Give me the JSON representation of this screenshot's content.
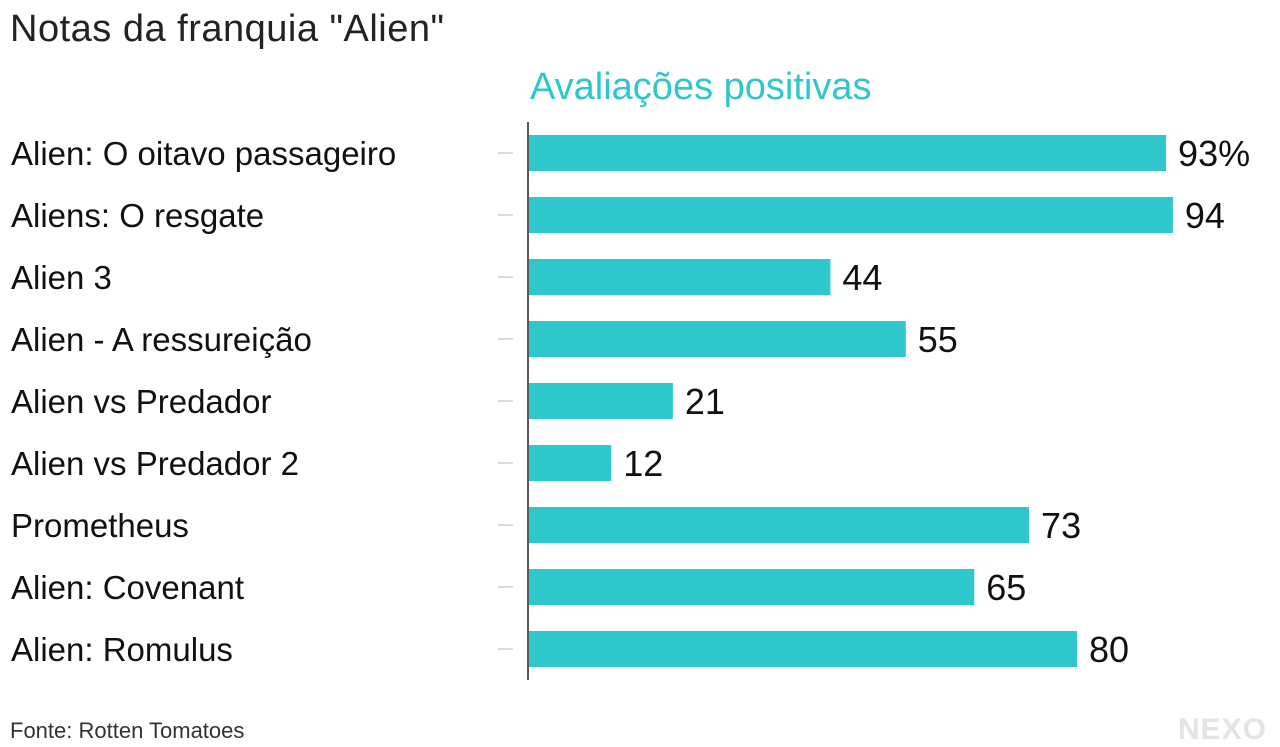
{
  "title": "Notas da franquia \"Alien\"",
  "source": "Fonte: Rotten Tomatoes",
  "logo": "NEXO",
  "colors": {
    "bar": "#2ec7cc",
    "heading": "#2ec7cc",
    "axis": "#222222",
    "tick": "#cccccc"
  },
  "chart_data": {
    "type": "bar",
    "orientation": "horizontal",
    "categories": [
      "Alien: O oitavo passageiro",
      "Aliens: O resgate",
      "Alien 3",
      "Alien - A ressureição",
      "Alien vs Predador",
      "Alien vs Predador 2",
      "Prometheus",
      "Alien: Covenant",
      "Alien: Romulus"
    ],
    "series": [
      {
        "name": "Avaliações positivas",
        "values": [
          93,
          94,
          44,
          55,
          21,
          12,
          73,
          65,
          80
        ]
      }
    ],
    "value_labels": [
      "93%",
      "94",
      "44",
      "55",
      "21",
      "12",
      "73",
      "65",
      "80"
    ],
    "xlim": [
      0,
      100
    ],
    "grid": false,
    "legend": "none"
  }
}
